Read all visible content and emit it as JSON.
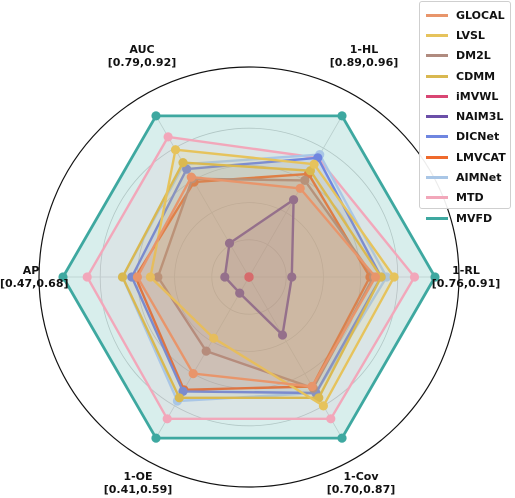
{
  "chart_data": {
    "type": "radar",
    "axes": [
      {
        "name": "1-HL",
        "range_label": "[0.89,0.96]",
        "range": [
          0.89,
          0.96
        ]
      },
      {
        "name": "1-RL",
        "range_label": "[0.76,0.91]",
        "range": [
          0.76,
          0.91
        ]
      },
      {
        "name": "1-Cov",
        "range_label": "[0.70,0.87]",
        "range": [
          0.7,
          0.87
        ]
      },
      {
        "name": "1-OE",
        "range_label": "[0.41,0.59]",
        "range": [
          0.41,
          0.59
        ]
      },
      {
        "name": "AP",
        "range_label": "[0.47,0.68]",
        "range": [
          0.47,
          0.68
        ]
      },
      {
        "name": "AUC",
        "range_label": "[0.79,0.92]",
        "range": [
          0.79,
          0.92
        ]
      }
    ],
    "normalized": true,
    "series": [
      {
        "name": "GLOCAL",
        "color": "#e8956b",
        "values": [
          0.55,
          0.68,
          0.68,
          0.6,
          0.6,
          0.62
        ]
      },
      {
        "name": "LVSL",
        "color": "#e6c35c",
        "values": [
          0.7,
          0.78,
          0.8,
          0.38,
          0.53,
          0.79
        ]
      },
      {
        "name": "DM2L",
        "color": "#b08b7f",
        "values": [
          0.6,
          0.67,
          0.69,
          0.46,
          0.49,
          0.61
        ]
      },
      {
        "name": "CDMM",
        "color": "#d9b850",
        "values": [
          0.66,
          0.71,
          0.75,
          0.75,
          0.68,
          0.71
        ]
      },
      {
        "name": "iMVWL",
        "color": "#d94673",
        "values": [
          0.0,
          0.0,
          0.0,
          0.0,
          0.0,
          0.0
        ]
      },
      {
        "name": "NAIM3L",
        "color": "#6b4fa8",
        "values": [
          0.48,
          0.23,
          0.36,
          0.1,
          0.13,
          0.21
        ]
      },
      {
        "name": "DICNet",
        "color": "#6f86e0",
        "values": [
          0.74,
          0.71,
          0.72,
          0.71,
          0.63,
          0.67
        ]
      },
      {
        "name": "LMVCAT",
        "color": "#ef6a2c",
        "values": [
          0.64,
          0.65,
          0.68,
          0.7,
          0.61,
          0.59
        ]
      },
      {
        "name": "AIMNet",
        "color": "#a9c6e6",
        "values": [
          0.76,
          0.74,
          0.72,
          0.77,
          0.68,
          0.7
        ]
      },
      {
        "name": "MTD",
        "color": "#f2a7ba",
        "values": [
          0.74,
          0.89,
          0.88,
          0.88,
          0.87,
          0.87
        ]
      },
      {
        "name": "MVFD",
        "color": "#3ea8a0",
        "values": [
          1.0,
          1.0,
          1.0,
          1.0,
          1.0,
          1.0
        ]
      }
    ],
    "legend": "top-right",
    "grid": true
  }
}
